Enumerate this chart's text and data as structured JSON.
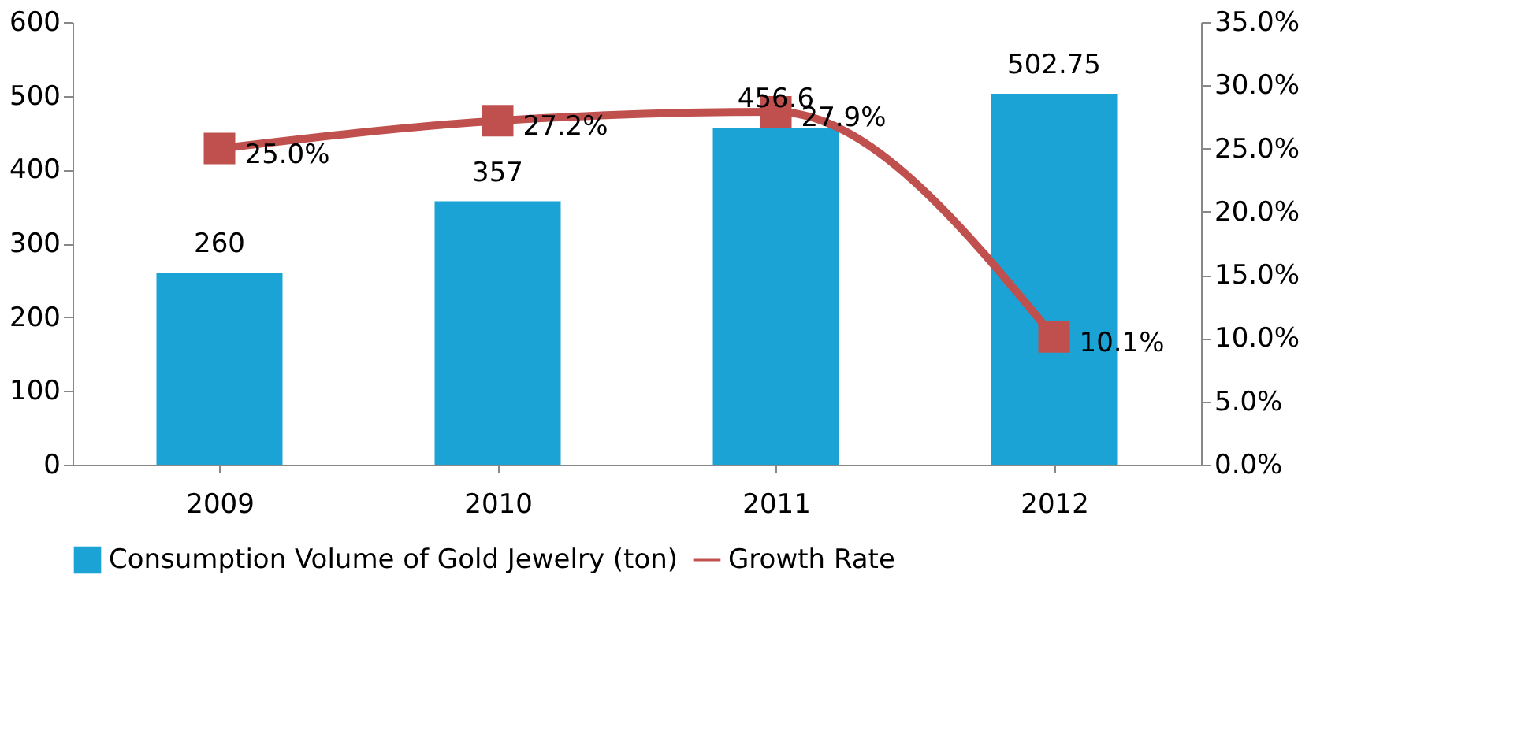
{
  "chart_data": {
    "type": "bar",
    "categories": [
      "2009",
      "2010",
      "2011",
      "2012"
    ],
    "series": [
      {
        "name": "Consumption Volume of Gold Jewelry (ton)",
        "color": "#1ca3d6",
        "values": [
          260,
          357,
          456.6,
          502.75
        ]
      },
      {
        "name": "Growth Rate",
        "color": "#c0504d",
        "type": "line",
        "axis": "y2",
        "marker": "square",
        "values": [
          25.0,
          27.2,
          27.9,
          10.1
        ],
        "value_labels": [
          "25.0%",
          "27.2%",
          "27.9%",
          "10.1%"
        ]
      }
    ],
    "ylim": [
      0,
      600
    ],
    "yticks": [
      0,
      100,
      200,
      300,
      400,
      500,
      600
    ],
    "y2lim": [
      0,
      35
    ],
    "y2ticks": [
      {
        "value": 0,
        "label": "0.0%"
      },
      {
        "value": 5,
        "label": "5.0%"
      },
      {
        "value": 10,
        "label": "10.0%"
      },
      {
        "value": 15,
        "label": "15.0%"
      },
      {
        "value": 20,
        "label": "20.0%"
      },
      {
        "value": 25,
        "label": "25.0%"
      },
      {
        "value": 30,
        "label": "30.0%"
      },
      {
        "value": 35,
        "label": "35.0%"
      }
    ],
    "data_labels": true,
    "grid": false,
    "legend": "bottom"
  }
}
